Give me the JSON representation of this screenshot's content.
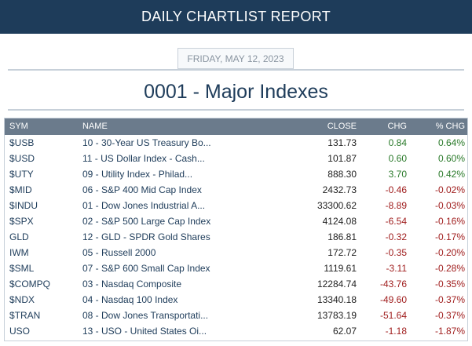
{
  "header": {
    "title": "DAILY CHARTLIST REPORT"
  },
  "report": {
    "date": "FRIDAY, MAY 12, 2023",
    "list_title": "0001 - Major Indexes"
  },
  "table": {
    "columns": {
      "sym": "SYM",
      "name": "NAME",
      "close": "CLOSE",
      "chg": "CHG",
      "pct": "% CHG"
    },
    "rows": [
      {
        "sym": "$USB",
        "name": "10 - 30-Year US Treasury Bo...",
        "close": "131.73",
        "chg": "0.84",
        "pct": "0.64%",
        "dir": "up"
      },
      {
        "sym": "$USD",
        "name": "11 - US Dollar Index - Cash...",
        "close": "101.87",
        "chg": "0.60",
        "pct": "0.60%",
        "dir": "up"
      },
      {
        "sym": "$UTY",
        "name": "09 - Utility Index - Philad...",
        "close": "888.30",
        "chg": "3.70",
        "pct": "0.42%",
        "dir": "up"
      },
      {
        "sym": "$MID",
        "name": "06 - S&P 400 Mid Cap Index",
        "close": "2432.73",
        "chg": "-0.46",
        "pct": "-0.02%",
        "dir": "down"
      },
      {
        "sym": "$INDU",
        "name": "01 - Dow Jones Industrial A...",
        "close": "33300.62",
        "chg": "-8.89",
        "pct": "-0.03%",
        "dir": "down"
      },
      {
        "sym": "$SPX",
        "name": "02 - S&P 500 Large Cap Index",
        "close": "4124.08",
        "chg": "-6.54",
        "pct": "-0.16%",
        "dir": "down"
      },
      {
        "sym": "GLD",
        "name": "12 - GLD - SPDR Gold Shares",
        "close": "186.81",
        "chg": "-0.32",
        "pct": "-0.17%",
        "dir": "down"
      },
      {
        "sym": "IWM",
        "name": "05 - Russell 2000",
        "close": "172.72",
        "chg": "-0.35",
        "pct": "-0.20%",
        "dir": "down"
      },
      {
        "sym": "$SML",
        "name": "07 - S&P 600 Small Cap Index",
        "close": "1119.61",
        "chg": "-3.11",
        "pct": "-0.28%",
        "dir": "down"
      },
      {
        "sym": "$COMPQ",
        "name": "03 - Nasdaq Composite",
        "close": "12284.74",
        "chg": "-43.76",
        "pct": "-0.35%",
        "dir": "down"
      },
      {
        "sym": "$NDX",
        "name": "04 - Nasdaq 100 Index",
        "close": "13340.18",
        "chg": "-49.60",
        "pct": "-0.37%",
        "dir": "down"
      },
      {
        "sym": "$TRAN",
        "name": "08 - Dow Jones Transportati...",
        "close": "13783.19",
        "chg": "-51.64",
        "pct": "-0.37%",
        "dir": "down"
      },
      {
        "sym": "USO",
        "name": "13 - USO - United States Oi...",
        "close": "62.07",
        "chg": "-1.18",
        "pct": "-1.87%",
        "dir": "down"
      }
    ]
  },
  "colors": {
    "header_bg": "#1e3c5a",
    "table_header_bg": "#6b7b8c",
    "up": "#2a7a2a",
    "down": "#a01e1e"
  }
}
